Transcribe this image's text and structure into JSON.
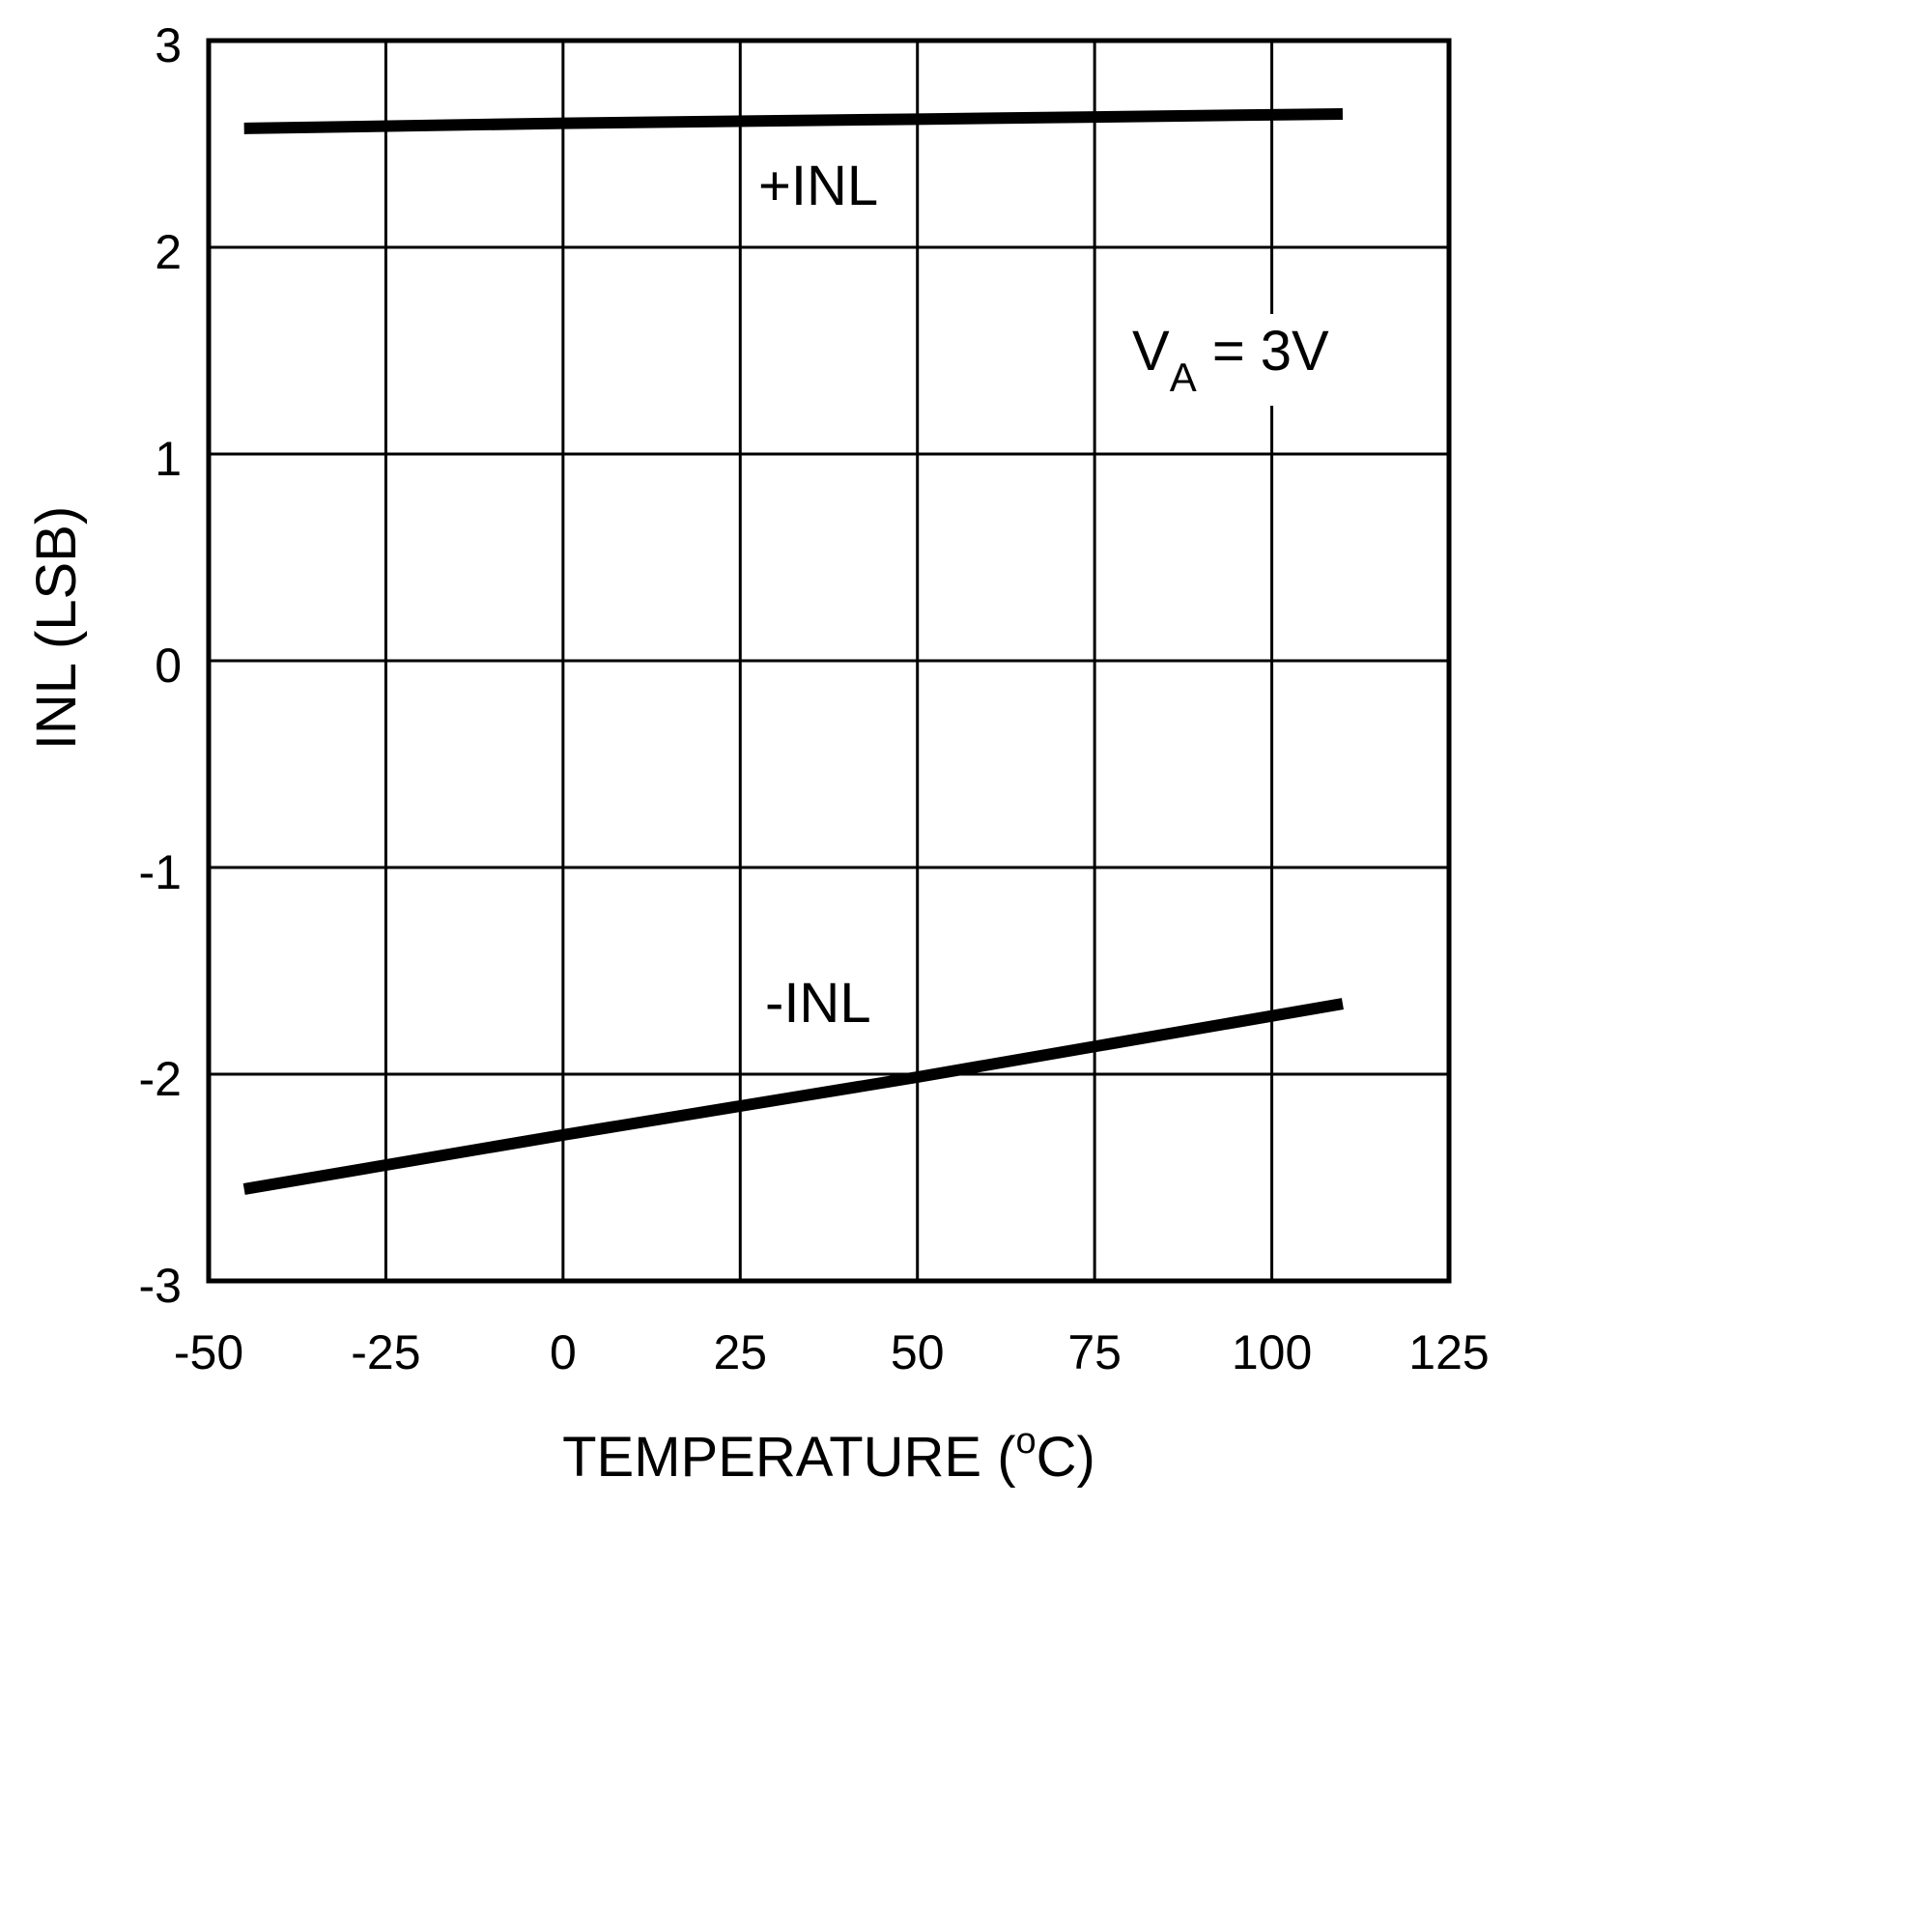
{
  "chart_data": {
    "type": "line",
    "xlabel": "TEMPERATURE (°C)",
    "xlabel_parts": {
      "pre": "TEMPERATURE (",
      "sup": "o",
      "post": "C)"
    },
    "ylabel": "INL (LSB)",
    "xlim": [
      -50,
      125
    ],
    "ylim": [
      -3,
      3
    ],
    "xticks": [
      -50,
      -25,
      0,
      25,
      50,
      75,
      100,
      125
    ],
    "yticks": [
      3,
      2,
      1,
      0,
      -1,
      -2,
      -3
    ],
    "grid": true,
    "line_color": "#000000",
    "series": [
      {
        "name": "+INL",
        "x": [
          -45,
          0,
          50,
          110
        ],
        "y": [
          2.575,
          2.6,
          2.62,
          2.645
        ]
      },
      {
        "name": "-INL",
        "x": [
          -45,
          0,
          50,
          110
        ],
        "y": [
          -2.556,
          -2.294,
          -2.014,
          -1.659
        ]
      }
    ],
    "annotations": [
      {
        "text": "+INL",
        "series": 0
      },
      {
        "text": "-INL",
        "series": 1
      },
      {
        "text": "V",
        "sub": "A",
        "rest": " = 3V"
      }
    ]
  }
}
